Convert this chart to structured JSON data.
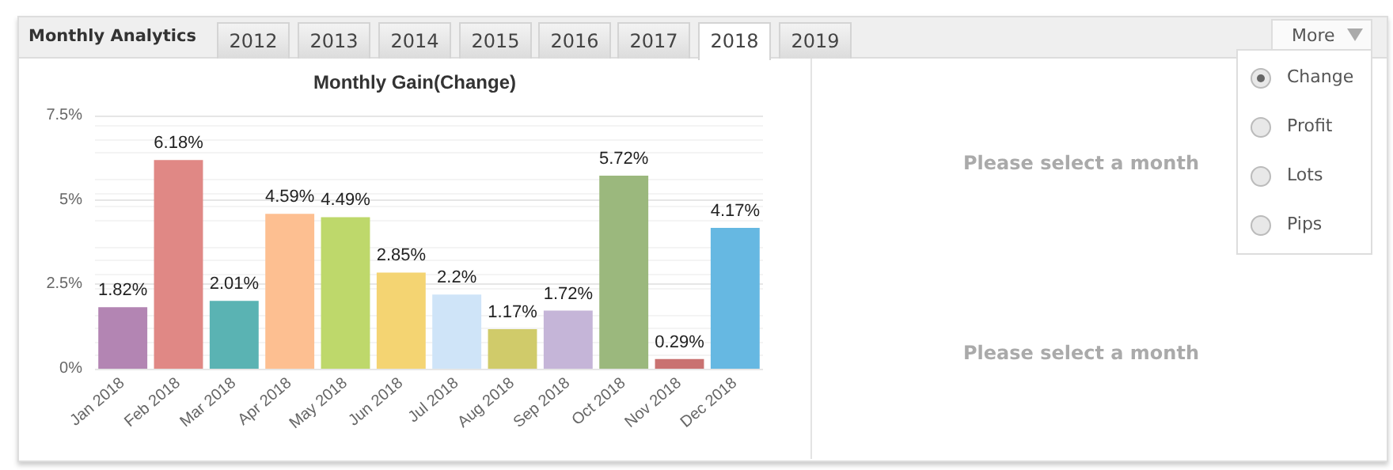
{
  "chart_data": {
    "type": "bar",
    "title": "Monthly Gain(Change)",
    "categories": [
      "Jan 2018",
      "Feb 2018",
      "Mar 2018",
      "Apr 2018",
      "May 2018",
      "Jun 2018",
      "Jul 2018",
      "Aug 2018",
      "Sep 2018",
      "Oct 2018",
      "Nov 2018",
      "Dec 2018"
    ],
    "values": [
      1.82,
      6.18,
      2.01,
      4.59,
      4.49,
      2.85,
      2.2,
      1.17,
      1.72,
      5.72,
      0.29,
      4.17
    ],
    "value_labels": [
      "1.82%",
      "6.18%",
      "2.01%",
      "4.59%",
      "4.49%",
      "2.85%",
      "2.2%",
      "1.17%",
      "1.72%",
      "5.72%",
      "0.29%",
      "4.17%"
    ],
    "colors": [
      "#b385b3",
      "#e08885",
      "#5ab3b3",
      "#fdbf91",
      "#bed86b",
      "#f4d472",
      "#cfe4f8",
      "#d0cb6a",
      "#c5b5d8",
      "#9bb87d",
      "#c97271",
      "#66b8e2"
    ],
    "ylim": [
      0,
      7.5
    ],
    "yticks": [
      {
        "value": 0,
        "label": "0%"
      },
      {
        "value": 2.5,
        "label": "2.5%"
      },
      {
        "value": 5,
        "label": "5%"
      },
      {
        "value": 7.5,
        "label": "7.5%"
      }
    ],
    "grid": "y",
    "annotations": [
      "Monthly Analytics",
      "2012",
      "2013",
      "2014",
      "2015",
      "2016",
      "2017",
      "2018",
      "2019",
      "More",
      "Change",
      "Profit",
      "Lots",
      "Pips",
      "Please select a month",
      "Please select a month"
    ]
  }
}
